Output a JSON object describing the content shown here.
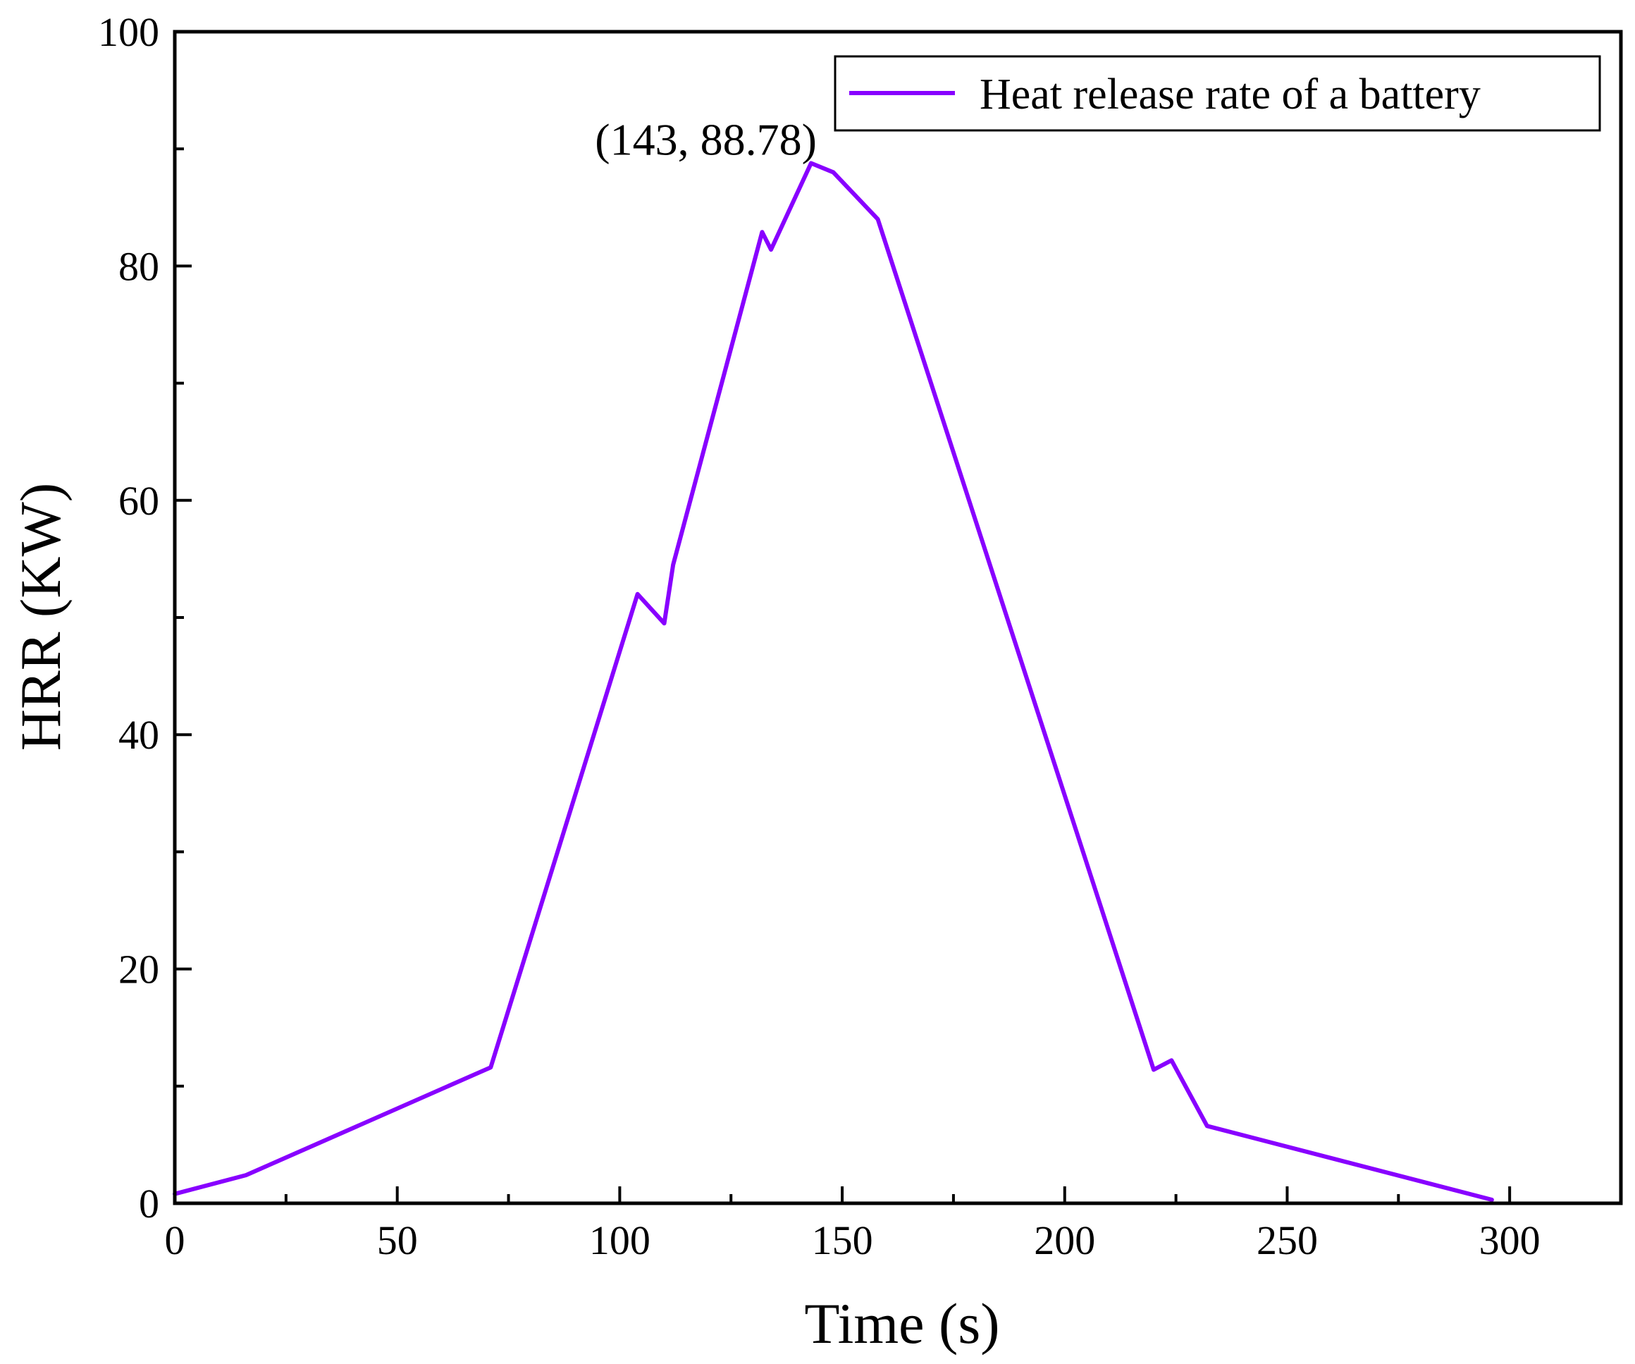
{
  "chart_data": {
    "type": "line",
    "title": "",
    "xlabel": "Time (s)",
    "ylabel": "HRR (KW)",
    "xlim": [
      0,
      325
    ],
    "ylim": [
      0,
      100
    ],
    "x_ticks": [
      0,
      50,
      100,
      150,
      200,
      250,
      300
    ],
    "y_ticks": [
      0,
      20,
      40,
      60,
      80,
      100
    ],
    "x_minor_step": 25,
    "y_minor_step": 10,
    "grid": false,
    "legend_position": "top-right",
    "series": [
      {
        "name": "Heat release rate of a battery",
        "color": "#8800ff",
        "x": [
          0,
          16,
          71,
          104,
          110,
          112,
          132,
          134,
          143,
          148,
          158,
          220,
          224,
          232,
          296
        ],
        "y": [
          0.8,
          2.4,
          11.6,
          52.0,
          49.5,
          54.5,
          82.9,
          81.4,
          88.78,
          88.0,
          84.0,
          11.4,
          12.2,
          6.6,
          0.3
        ]
      }
    ],
    "annotations": [
      {
        "text": "(143,  88.78)",
        "x": 143,
        "y": 88.78
      }
    ]
  }
}
